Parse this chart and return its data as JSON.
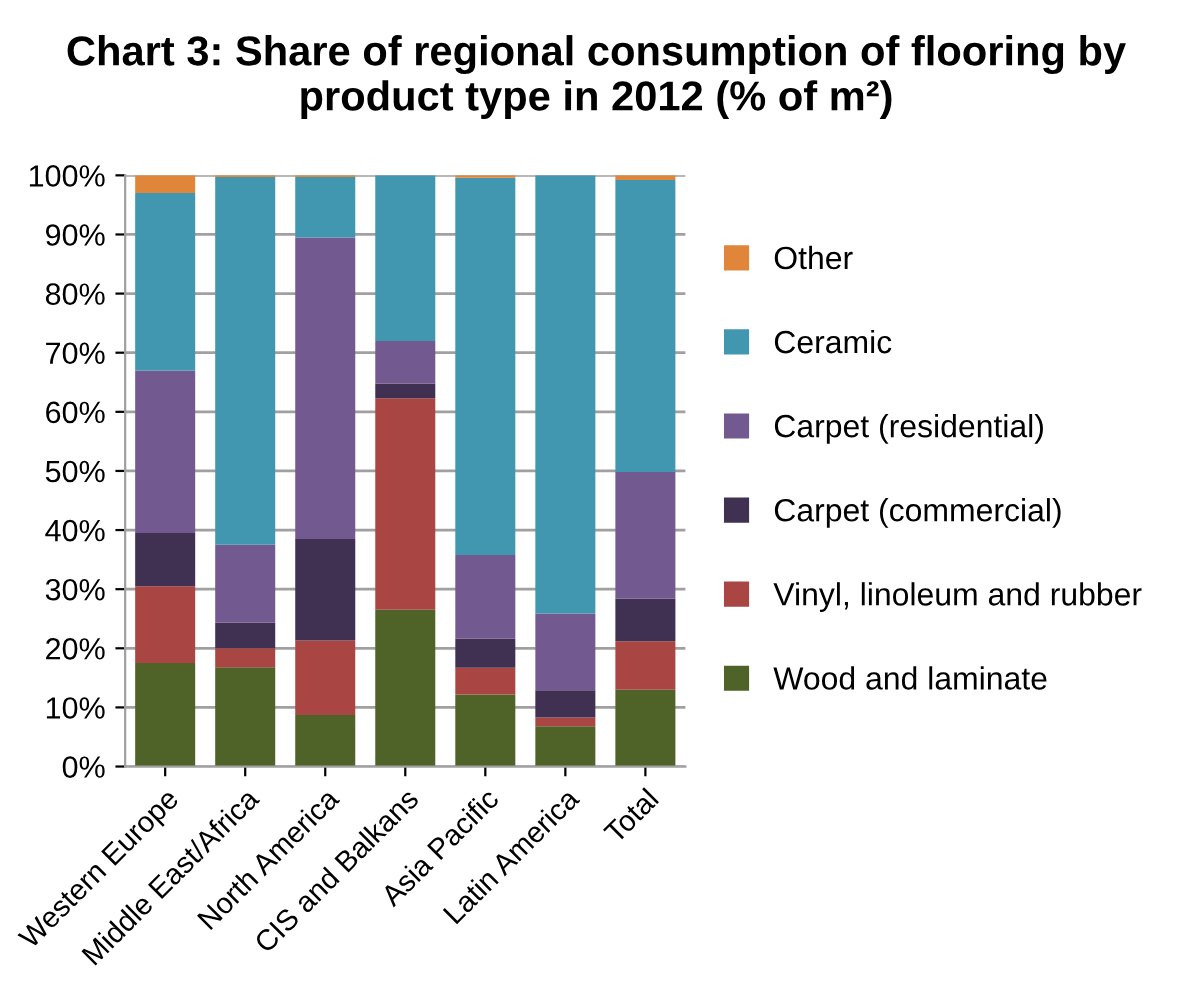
{
  "chart_data": {
    "type": "bar",
    "stacked": true,
    "title": "Chart 3: Share of regional consumption of flooring by product type in 2012 (% of m²)",
    "categories": [
      "Western Europe",
      "Middle East/Africa",
      "North America",
      "CIS and Balkans",
      "Asia Pacific",
      "Latin America",
      "Total"
    ],
    "series": [
      {
        "name": "Wood and laminate",
        "color": "#4f6228",
        "values": [
          17.5,
          16.8,
          8.7,
          26.5,
          12.2,
          6.8,
          13
        ]
      },
      {
        "name": "Vinyl, linoleum and rubber",
        "color": "#a94543",
        "values": [
          13,
          3.2,
          12.6,
          35.8,
          4.5,
          1.5,
          8.2
        ]
      },
      {
        "name": "Carpet (commercial)",
        "color": "#403152",
        "values": [
          9,
          4.3,
          17.2,
          2.5,
          4.9,
          4.6,
          7.2
        ]
      },
      {
        "name": "Carpet (residential)",
        "color": "#725a90",
        "values": [
          27.5,
          13.2,
          51,
          7.2,
          14.2,
          13,
          21.4
        ]
      },
      {
        "name": "Ceramic",
        "color": "#4197b0",
        "values": [
          30,
          62.2,
          10.2,
          28,
          63.8,
          74.1,
          49.4
        ]
      },
      {
        "name": "Other",
        "color": "#e0863a",
        "values": [
          3,
          0.3,
          0.3,
          0,
          0.4,
          0,
          0.8
        ]
      }
    ],
    "ylim": [
      0,
      100
    ],
    "yticks": [
      {
        "value": 0,
        "label": "0%"
      },
      {
        "value": 10,
        "label": "10%"
      },
      {
        "value": 20,
        "label": "20%"
      },
      {
        "value": 30,
        "label": "30%"
      },
      {
        "value": 40,
        "label": "40%"
      },
      {
        "value": 50,
        "label": "50%"
      },
      {
        "value": 60,
        "label": "60%"
      },
      {
        "value": 70,
        "label": "70%"
      },
      {
        "value": 80,
        "label": "80%"
      },
      {
        "value": 90,
        "label": "90%"
      },
      {
        "value": 100,
        "label": "100%"
      }
    ],
    "grid": "y",
    "legend": "right"
  }
}
